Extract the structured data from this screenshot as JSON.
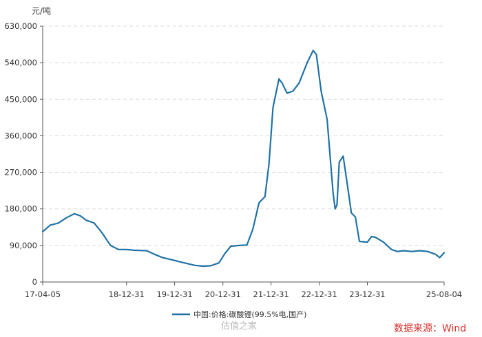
{
  "chart_data": {
    "type": "line",
    "title": "",
    "ylabel": "元/吨",
    "xlabel": "",
    "ylim": [
      0,
      630000
    ],
    "yticks": [
      0,
      90000,
      180000,
      270000,
      360000,
      450000,
      540000,
      630000
    ],
    "ytick_labels": [
      "0",
      "90,000",
      "180,000",
      "270,000",
      "360,000",
      "450,000",
      "540,000",
      "630,000"
    ],
    "xlim": [
      "2017-04-05",
      "2025-08-04"
    ],
    "xticks": [
      "2017-04-05",
      "2018-12-31",
      "2019-12-31",
      "2020-12-31",
      "2021-12-31",
      "2022-12-31",
      "2023-12-31",
      "2025-08-04"
    ],
    "xtick_labels": [
      "17-04-05",
      "18-12-31",
      "19-12-31",
      "20-12-31",
      "21-12-31",
      "22-12-31",
      "23-12-31",
      "25-08-04"
    ],
    "grid": true,
    "legend_position": "bottom-center",
    "line_color": "#1f72a6",
    "series": [
      {
        "name": "中国:价格:碳酸锂(99.5%电,国产)",
        "x": [
          "2017-04-05",
          "2017-06-01",
          "2017-08-01",
          "2017-10-01",
          "2017-12-01",
          "2018-01-15",
          "2018-03-01",
          "2018-05-01",
          "2018-07-01",
          "2018-09-01",
          "2018-11-01",
          "2018-12-31",
          "2019-03-01",
          "2019-06-01",
          "2019-08-01",
          "2019-10-01",
          "2019-12-31",
          "2020-03-01",
          "2020-06-01",
          "2020-08-01",
          "2020-10-01",
          "2020-12-01",
          "2021-01-15",
          "2021-03-01",
          "2021-05-01",
          "2021-07-01",
          "2021-08-15",
          "2021-10-01",
          "2021-11-15",
          "2021-12-15",
          "2022-01-15",
          "2022-03-01",
          "2022-03-25",
          "2022-05-01",
          "2022-06-15",
          "2022-08-01",
          "2022-10-01",
          "2022-11-15",
          "2022-12-10",
          "2023-01-15",
          "2023-03-01",
          "2023-04-15",
          "2023-05-01",
          "2023-05-15",
          "2023-06-01",
          "2023-07-01",
          "2023-08-01",
          "2023-09-01",
          "2023-10-01",
          "2023-11-01",
          "2023-12-31",
          "2024-02-01",
          "2024-03-01",
          "2024-05-01",
          "2024-07-01",
          "2024-08-15",
          "2024-10-01",
          "2024-12-01",
          "2025-02-01",
          "2025-04-01",
          "2025-06-01",
          "2025-07-01",
          "2025-08-04"
        ],
        "y": [
          124000,
          140000,
          145000,
          158000,
          168000,
          163000,
          152000,
          145000,
          120000,
          90000,
          80000,
          80000,
          78000,
          77000,
          68000,
          60000,
          53000,
          48000,
          41000,
          39000,
          40000,
          47000,
          70000,
          88000,
          90000,
          91000,
          130000,
          195000,
          210000,
          290000,
          430000,
          500000,
          490000,
          465000,
          470000,
          490000,
          540000,
          570000,
          560000,
          470000,
          400000,
          220000,
          180000,
          190000,
          295000,
          310000,
          240000,
          170000,
          160000,
          100000,
          98000,
          112000,
          110000,
          98000,
          80000,
          75000,
          77000,
          75000,
          77000,
          75000,
          68000,
          60000,
          72000
        ]
      }
    ],
    "legend_entries": [
      "中国:价格:碳酸锂(99.5%电,国产)"
    ],
    "annotations": {
      "source": "数据来源：Wind",
      "watermark": "估值之家"
    }
  }
}
